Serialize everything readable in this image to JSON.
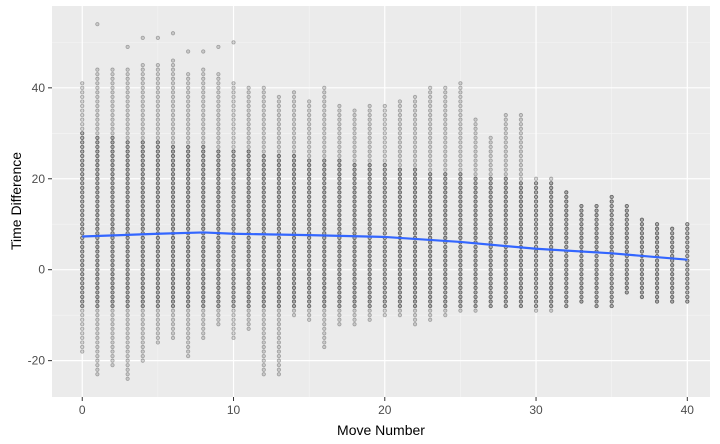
{
  "chart_data": {
    "type": "scatter",
    "xlabel": "Move Number",
    "ylabel": "Time Difference",
    "xlim": [
      -2,
      41.5
    ],
    "ylim": [
      -28,
      58
    ],
    "x_ticks": [
      0,
      10,
      20,
      30,
      40
    ],
    "y_ticks": [
      -20,
      0,
      20,
      40
    ],
    "x_tick_labels": [
      "0",
      "10",
      "20",
      "30",
      "40"
    ],
    "y_tick_labels": [
      "-20",
      "0",
      "20",
      "40"
    ],
    "grid": true,
    "legend": "none",
    "point_description": "semi-transparent black points, one column per integer move number, with integer time differences",
    "point_color": "#000000",
    "panel_background": "#ebebeb",
    "series": [
      {
        "kind": "points",
        "columns": [
          {
            "x": 0,
            "min": -18,
            "max": 41,
            "outliers": []
          },
          {
            "x": 1,
            "min": -23,
            "max": 44,
            "outliers": [
              54
            ]
          },
          {
            "x": 2,
            "min": -21,
            "max": 44,
            "outliers": []
          },
          {
            "x": 3,
            "min": -24,
            "max": 44,
            "outliers": [
              49
            ]
          },
          {
            "x": 4,
            "min": -20,
            "max": 45,
            "outliers": [
              51
            ]
          },
          {
            "x": 5,
            "min": -16,
            "max": 45,
            "outliers": [
              51
            ]
          },
          {
            "x": 6,
            "min": -15,
            "max": 46,
            "outliers": [
              52
            ]
          },
          {
            "x": 7,
            "min": -19,
            "max": 43,
            "outliers": [
              48
            ]
          },
          {
            "x": 8,
            "min": -15,
            "max": 44,
            "outliers": [
              48
            ]
          },
          {
            "x": 9,
            "min": -12,
            "max": 43,
            "outliers": [
              49
            ]
          },
          {
            "x": 10,
            "min": -15,
            "max": 41,
            "outliers": [
              50
            ]
          },
          {
            "x": 11,
            "min": -13,
            "max": 40,
            "outliers": []
          },
          {
            "x": 12,
            "min": -23,
            "max": 40,
            "outliers": []
          },
          {
            "x": 13,
            "min": -23,
            "max": 38,
            "outliers": []
          },
          {
            "x": 14,
            "min": -10,
            "max": 39,
            "outliers": []
          },
          {
            "x": 15,
            "min": -11,
            "max": 37,
            "outliers": []
          },
          {
            "x": 16,
            "min": -17,
            "max": 40,
            "outliers": []
          },
          {
            "x": 17,
            "min": -12,
            "max": 36,
            "outliers": []
          },
          {
            "x": 18,
            "min": -12,
            "max": 35,
            "outliers": []
          },
          {
            "x": 19,
            "min": -11,
            "max": 36,
            "outliers": []
          },
          {
            "x": 20,
            "min": -10,
            "max": 36,
            "outliers": []
          },
          {
            "x": 21,
            "min": -10,
            "max": 37,
            "outliers": []
          },
          {
            "x": 22,
            "min": -12,
            "max": 38,
            "outliers": []
          },
          {
            "x": 23,
            "min": -11,
            "max": 40,
            "outliers": []
          },
          {
            "x": 24,
            "min": -10,
            "max": 40,
            "outliers": []
          },
          {
            "x": 25,
            "min": -9,
            "max": 41,
            "outliers": []
          },
          {
            "x": 26,
            "min": -9,
            "max": 33,
            "outliers": []
          },
          {
            "x": 27,
            "min": -8,
            "max": 29,
            "outliers": []
          },
          {
            "x": 28,
            "min": -8,
            "max": 34,
            "outliers": []
          },
          {
            "x": 29,
            "min": -8,
            "max": 34,
            "outliers": []
          },
          {
            "x": 30,
            "min": -9,
            "max": 20,
            "outliers": []
          },
          {
            "x": 31,
            "min": -9,
            "max": 20,
            "outliers": []
          },
          {
            "x": 32,
            "min": -8,
            "max": 17,
            "outliers": []
          },
          {
            "x": 33,
            "min": -7,
            "max": 14,
            "outliers": []
          },
          {
            "x": 34,
            "min": -8,
            "max": 14,
            "outliers": []
          },
          {
            "x": 35,
            "min": -8,
            "max": 16,
            "outliers": []
          },
          {
            "x": 36,
            "min": -5,
            "max": 14,
            "outliers": []
          },
          {
            "x": 37,
            "min": -6,
            "max": 11,
            "outliers": []
          },
          {
            "x": 38,
            "min": -7,
            "max": 10,
            "outliers": []
          },
          {
            "x": 39,
            "min": -7,
            "max": 9,
            "outliers": []
          },
          {
            "x": 40,
            "min": -7,
            "max": 10,
            "outliers": []
          }
        ]
      },
      {
        "kind": "smooth",
        "color": "#3366ff",
        "x": [
          0,
          5,
          8,
          10,
          15,
          20,
          25,
          30,
          35,
          40
        ],
        "y": [
          7.3,
          7.9,
          8.2,
          7.9,
          7.6,
          7.2,
          6.1,
          4.6,
          3.6,
          2.2
        ]
      }
    ]
  }
}
